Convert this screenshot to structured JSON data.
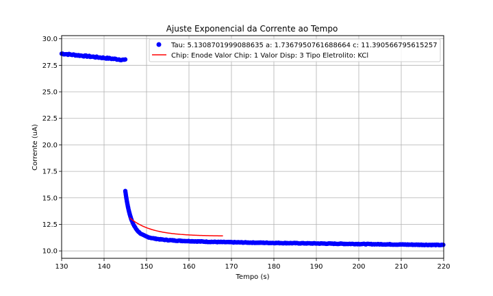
{
  "chart_data": {
    "type": "scatter",
    "title": "Ajuste Exponencial da Corrente ao Tempo",
    "xlabel": "Tempo (s)",
    "ylabel": "Corrente (uA)",
    "xlim": [
      130,
      220
    ],
    "ylim": [
      9.3,
      30.3
    ],
    "xticks": [
      130,
      140,
      150,
      160,
      170,
      180,
      190,
      200,
      210,
      220
    ],
    "yticks": [
      10.0,
      12.5,
      15.0,
      17.5,
      20.0,
      22.5,
      25.0,
      27.5,
      30.0
    ],
    "ytick_labels": [
      "10.0",
      "12.5",
      "15.0",
      "17.5",
      "20.0",
      "22.5",
      "25.0",
      "27.5",
      "30.0"
    ],
    "grid": true,
    "legend_position": "top-right",
    "colors": {
      "points": "#0000ff",
      "fit": "#ff0000"
    },
    "series": [
      {
        "name": "Tau: 5.1308701999088635 a: 1.7367950761688664 c: 11.390566795615257",
        "kind": "scatter",
        "segments": [
          {
            "x_start": 130,
            "x_end": 145,
            "y_start": 28.6,
            "y_end": 28.0
          },
          {
            "x_start": 145,
            "x_end": 220,
            "c": 10.85,
            "a": 3.9,
            "tau": 1.4,
            "b": 0.9,
            "tau2": 6.0,
            "drift": -0.005,
            "drift_x0": 160
          }
        ]
      },
      {
        "name": "Chip: Enode Valor Chip: 1 Valor Disp: 3 Tipo Eletrolito: KCl",
        "kind": "line",
        "x_start": 146,
        "x_end": 168,
        "c": 11.39,
        "a": 1.7368,
        "tau": 5.1309
      }
    ]
  }
}
